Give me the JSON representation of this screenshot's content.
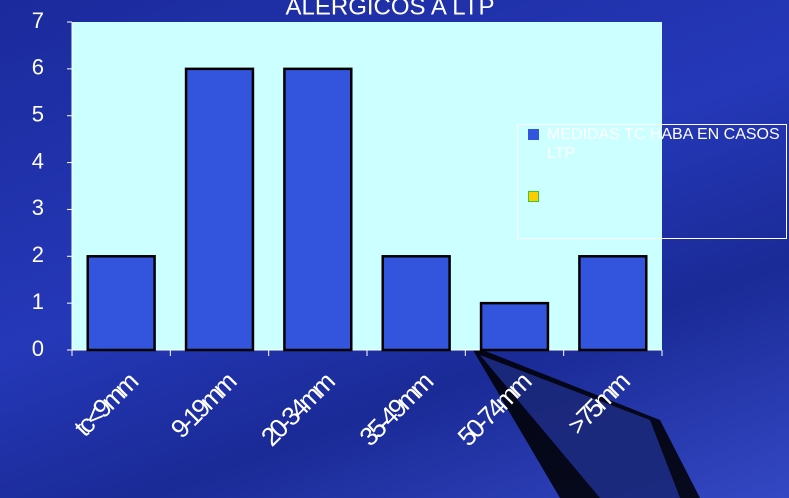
{
  "chart_data": {
    "type": "bar",
    "title": "ALERGICOS A LTP",
    "categories": [
      "tc<9mm",
      "9-19mm",
      "20-34mm",
      "35-49mm",
      "50-74mm",
      ">75mm"
    ],
    "series": [
      {
        "name": "MEDIDAS TC HABA EN CASOS LTP",
        "color": "#3355dd",
        "values": [
          2,
          6,
          6,
          2,
          1,
          2
        ]
      }
    ],
    "ylim": [
      0,
      7
    ],
    "yticks": [
      0,
      1,
      2,
      3,
      4,
      5,
      6,
      7
    ],
    "grid": false,
    "legend": "right"
  }
}
